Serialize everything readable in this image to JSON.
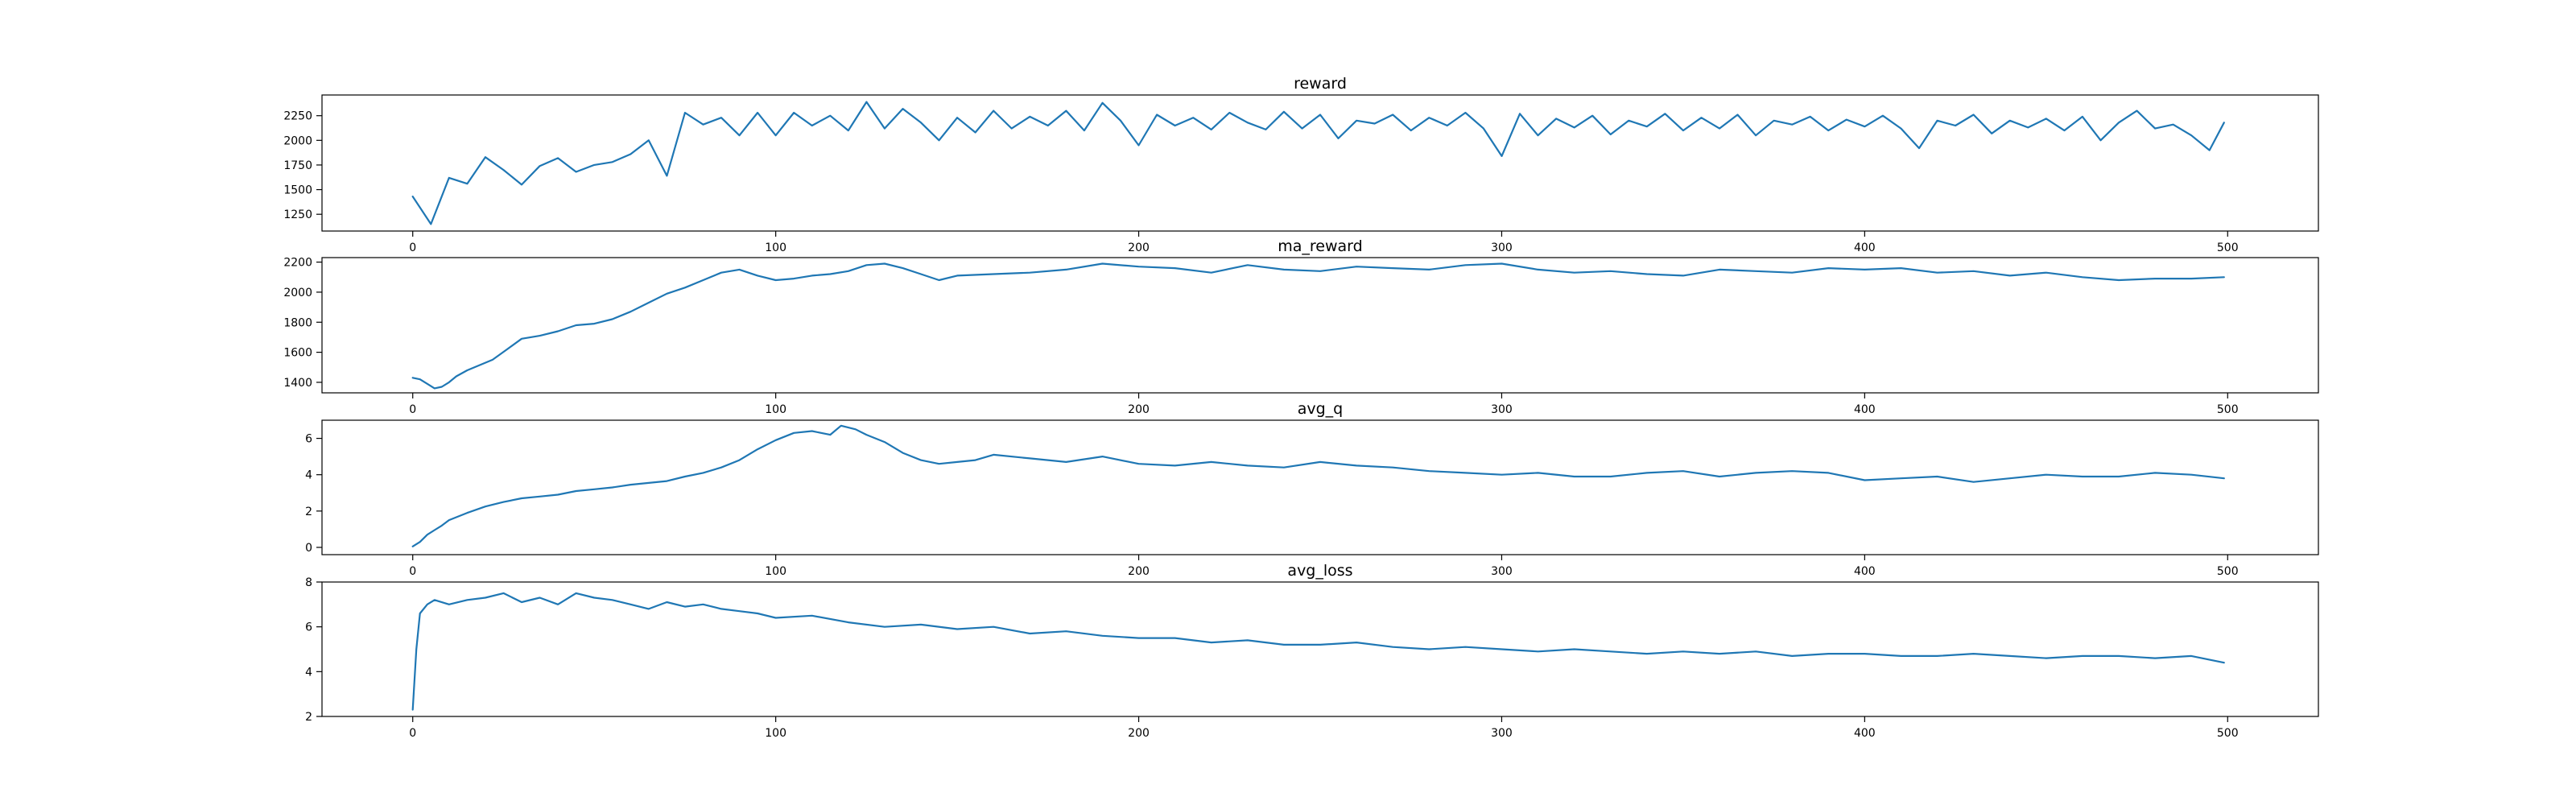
{
  "colors": {
    "series": "#1f77b4",
    "background": "#ffffff",
    "axes": "#000000"
  },
  "chart_data": [
    {
      "type": "line",
      "title": "reward",
      "xlabel": "",
      "ylabel": "",
      "xlim": [
        -25,
        525
      ],
      "ylim": [
        1080,
        2460
      ],
      "xticks": [
        0,
        100,
        200,
        300,
        400,
        500
      ],
      "yticks": [
        1250,
        1500,
        1750,
        2000,
        2250
      ],
      "grid": false,
      "series": [
        {
          "x": [
            0,
            5,
            10,
            15,
            20,
            25,
            30,
            35,
            40,
            45,
            50,
            55,
            60,
            65,
            70,
            75,
            80,
            85,
            90,
            95,
            100,
            105,
            110,
            115,
            120,
            125,
            130,
            135,
            140,
            145,
            150,
            155,
            160,
            165,
            170,
            175,
            180,
            185,
            190,
            195,
            200,
            205,
            210,
            215,
            220,
            225,
            230,
            235,
            240,
            245,
            250,
            255,
            260,
            265,
            270,
            275,
            280,
            285,
            290,
            295,
            300,
            305,
            310,
            315,
            320,
            325,
            330,
            335,
            340,
            345,
            350,
            355,
            360,
            365,
            370,
            375,
            380,
            385,
            390,
            395,
            400,
            405,
            410,
            415,
            420,
            425,
            430,
            435,
            440,
            445,
            450,
            455,
            460,
            465,
            470,
            475,
            480,
            485,
            490,
            495,
            499
          ],
          "y": [
            1430,
            1150,
            1620,
            1560,
            1830,
            1700,
            1550,
            1740,
            1820,
            1680,
            1750,
            1780,
            1860,
            2000,
            1640,
            2280,
            2160,
            2230,
            2050,
            2280,
            2050,
            2280,
            2150,
            2250,
            2100,
            2390,
            2120,
            2320,
            2180,
            2000,
            2230,
            2080,
            2300,
            2120,
            2240,
            2150,
            2300,
            2100,
            2380,
            2200,
            1950,
            2260,
            2150,
            2230,
            2110,
            2280,
            2180,
            2110,
            2290,
            2120,
            2260,
            2020,
            2200,
            2170,
            2260,
            2100,
            2230,
            2150,
            2280,
            2120,
            1840,
            2270,
            2050,
            2220,
            2130,
            2250,
            2060,
            2200,
            2140,
            2270,
            2100,
            2230,
            2120,
            2260,
            2050,
            2200,
            2160,
            2240,
            2100,
            2210,
            2140,
            2250,
            2120,
            1920,
            2200,
            2150,
            2260,
            2070,
            2200,
            2130,
            2220,
            2100,
            2240,
            2000,
            2180,
            2300,
            2120,
            2160,
            2050,
            1900,
            2180
          ]
        }
      ]
    },
    {
      "type": "line",
      "title": "ma_reward",
      "xlabel": "",
      "ylabel": "",
      "xlim": [
        -25,
        525
      ],
      "ylim": [
        1330,
        2230
      ],
      "xticks": [
        0,
        100,
        200,
        300,
        400,
        500
      ],
      "yticks": [
        1400,
        1600,
        1800,
        2000,
        2200
      ],
      "grid": false,
      "series": [
        {
          "x": [
            0,
            2,
            4,
            6,
            8,
            10,
            12,
            15,
            18,
            22,
            26,
            30,
            35,
            40,
            45,
            50,
            55,
            60,
            65,
            70,
            75,
            80,
            85,
            90,
            95,
            100,
            105,
            110,
            115,
            120,
            125,
            130,
            135,
            140,
            145,
            150,
            160,
            170,
            180,
            190,
            200,
            210,
            220,
            230,
            240,
            250,
            260,
            270,
            280,
            290,
            300,
            310,
            320,
            330,
            340,
            350,
            360,
            370,
            380,
            390,
            400,
            410,
            420,
            430,
            440,
            450,
            460,
            470,
            480,
            490,
            499
          ],
          "y": [
            1430,
            1420,
            1390,
            1360,
            1370,
            1400,
            1440,
            1480,
            1510,
            1550,
            1620,
            1690,
            1710,
            1740,
            1780,
            1790,
            1820,
            1870,
            1930,
            1990,
            2030,
            2080,
            2130,
            2150,
            2110,
            2080,
            2090,
            2110,
            2120,
            2140,
            2180,
            2190,
            2160,
            2120,
            2080,
            2110,
            2120,
            2130,
            2150,
            2190,
            2170,
            2160,
            2130,
            2180,
            2150,
            2140,
            2170,
            2160,
            2150,
            2180,
            2190,
            2150,
            2130,
            2140,
            2120,
            2110,
            2150,
            2140,
            2130,
            2160,
            2150,
            2160,
            2130,
            2140,
            2110,
            2130,
            2100,
            2080,
            2090,
            2090,
            2100
          ]
        }
      ]
    },
    {
      "type": "line",
      "title": "avg_q",
      "xlabel": "",
      "ylabel": "",
      "xlim": [
        -25,
        525
      ],
      "ylim": [
        -0.4,
        7.0
      ],
      "xticks": [
        0,
        100,
        200,
        300,
        400,
        500
      ],
      "yticks": [
        0,
        2,
        4,
        6
      ],
      "grid": false,
      "series": [
        {
          "x": [
            0,
            2,
            4,
            6,
            8,
            10,
            15,
            20,
            25,
            30,
            35,
            40,
            45,
            50,
            55,
            60,
            65,
            70,
            75,
            80,
            85,
            90,
            95,
            100,
            105,
            110,
            115,
            118,
            122,
            125,
            130,
            135,
            140,
            145,
            150,
            155,
            160,
            170,
            180,
            190,
            200,
            210,
            220,
            230,
            240,
            250,
            260,
            270,
            280,
            290,
            300,
            310,
            320,
            330,
            340,
            350,
            360,
            370,
            380,
            390,
            400,
            410,
            420,
            430,
            440,
            450,
            460,
            470,
            480,
            490,
            499
          ],
          "y": [
            0.05,
            0.3,
            0.7,
            0.95,
            1.2,
            1.5,
            1.9,
            2.25,
            2.5,
            2.7,
            2.8,
            2.9,
            3.1,
            3.2,
            3.3,
            3.45,
            3.55,
            3.65,
            3.9,
            4.1,
            4.4,
            4.8,
            5.4,
            5.9,
            6.3,
            6.4,
            6.2,
            6.7,
            6.5,
            6.2,
            5.8,
            5.2,
            4.8,
            4.6,
            4.7,
            4.8,
            5.1,
            4.9,
            4.7,
            5.0,
            4.6,
            4.5,
            4.7,
            4.5,
            4.4,
            4.7,
            4.5,
            4.4,
            4.2,
            4.1,
            4.0,
            4.1,
            3.9,
            3.9,
            4.1,
            4.2,
            3.9,
            4.1,
            4.2,
            4.1,
            3.7,
            3.8,
            3.9,
            3.6,
            3.8,
            4.0,
            3.9,
            3.9,
            4.1,
            4.0,
            3.8
          ]
        }
      ]
    },
    {
      "type": "line",
      "title": "avg_loss",
      "xlabel": "",
      "ylabel": "",
      "xlim": [
        -25,
        525
      ],
      "ylim": [
        2.0,
        8.0
      ],
      "xticks": [
        0,
        100,
        200,
        300,
        400,
        500
      ],
      "yticks": [
        2,
        4,
        6,
        8
      ],
      "grid": false,
      "series": [
        {
          "x": [
            0,
            1,
            2,
            4,
            6,
            10,
            15,
            20,
            25,
            30,
            35,
            40,
            45,
            50,
            55,
            60,
            65,
            70,
            75,
            80,
            85,
            90,
            95,
            100,
            110,
            120,
            130,
            140,
            150,
            160,
            170,
            180,
            190,
            200,
            210,
            220,
            230,
            240,
            250,
            260,
            270,
            280,
            290,
            300,
            310,
            320,
            330,
            340,
            350,
            360,
            370,
            380,
            390,
            400,
            410,
            420,
            430,
            440,
            450,
            460,
            470,
            480,
            490,
            499
          ],
          "y": [
            2.3,
            5.0,
            6.6,
            7.0,
            7.2,
            7.0,
            7.2,
            7.3,
            7.5,
            7.1,
            7.3,
            7.0,
            7.5,
            7.3,
            7.2,
            7.0,
            6.8,
            7.1,
            6.9,
            7.0,
            6.8,
            6.7,
            6.6,
            6.4,
            6.5,
            6.2,
            6.0,
            6.1,
            5.9,
            6.0,
            5.7,
            5.8,
            5.6,
            5.5,
            5.5,
            5.3,
            5.4,
            5.2,
            5.2,
            5.3,
            5.1,
            5.0,
            5.1,
            5.0,
            4.9,
            5.0,
            4.9,
            4.8,
            4.9,
            4.8,
            4.9,
            4.7,
            4.8,
            4.8,
            4.7,
            4.7,
            4.8,
            4.7,
            4.6,
            4.7,
            4.7,
            4.6,
            4.7,
            4.4
          ]
        }
      ]
    }
  ]
}
